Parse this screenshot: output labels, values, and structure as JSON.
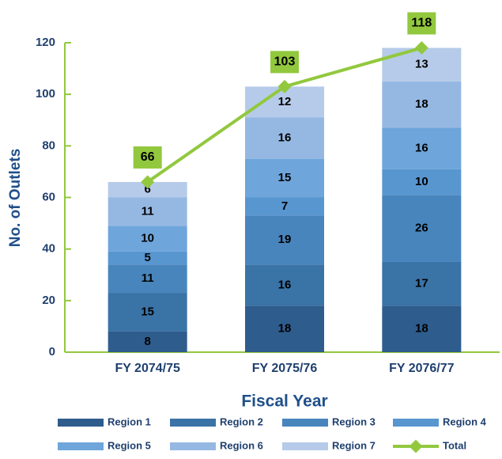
{
  "chart_data": {
    "type": "stacked_bar_line",
    "y_axis_label": "No. of Outlets",
    "x_axis_label": "Fiscal Year",
    "categories": [
      "FY 2074/75",
      "FY 2075/76",
      "FY 2076/77"
    ],
    "series": [
      {
        "name": "Region 1",
        "color": "#2e5c8c",
        "values": [
          8,
          18,
          18
        ]
      },
      {
        "name": "Region 2",
        "color": "#3a73a6",
        "values": [
          15,
          16,
          17
        ]
      },
      {
        "name": "Region 3",
        "color": "#4885bd",
        "values": [
          11,
          19,
          26
        ]
      },
      {
        "name": "Region 4",
        "color": "#5896d0",
        "values": [
          5,
          7,
          10
        ]
      },
      {
        "name": "Region 5",
        "color": "#6ea5db",
        "values": [
          10,
          15,
          16
        ]
      },
      {
        "name": "Region 6",
        "color": "#95b8e2",
        "values": [
          11,
          16,
          18
        ]
      },
      {
        "name": "Region 7",
        "color": "#b6cbe9",
        "values": [
          6,
          12,
          13
        ]
      }
    ],
    "line": {
      "name": "Total",
      "color": "#92c83e",
      "values": [
        66,
        103,
        118
      ]
    },
    "ylim": [
      0,
      120
    ],
    "yticks": [
      0,
      20,
      40,
      60,
      80,
      100,
      120
    ]
  }
}
